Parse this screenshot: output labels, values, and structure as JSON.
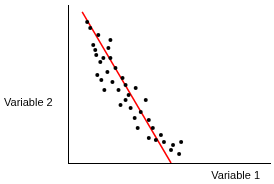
{
  "chart_data": {
    "type": "scatter",
    "x_label": "Variable 1",
    "y_label": "Variable 2",
    "xlim": [
      0,
      10
    ],
    "ylim": [
      0,
      10
    ],
    "grid": false,
    "tick_labels": false,
    "series": [
      {
        "type": "scatter",
        "color": "#000000",
        "marker": "circle",
        "x": [
          0.95,
          1.1,
          1.5,
          1.25,
          1.4,
          1.6,
          1.75,
          2.0,
          2.1,
          1.45,
          1.65,
          1.95,
          2.2,
          2.35,
          2.5,
          2.7,
          2.85,
          2.6,
          3.0,
          3.1,
          3.35,
          3.3,
          3.6,
          3.85,
          4.0,
          4.2,
          4.35,
          4.6,
          4.0,
          4.75,
          5.1,
          5.2,
          5.5,
          5.6,
          3.45,
          2.1,
          1.35,
          1.8,
          2.85
        ],
        "values": [
          8.92,
          8.54,
          8.1,
          7.47,
          6.84,
          6.39,
          6.65,
          7.28,
          6.65,
          5.57,
          5.25,
          5.76,
          5.13,
          6.01,
          4.62,
          5.38,
          3.99,
          3.67,
          4.3,
          3.48,
          4.75,
          2.85,
          3.23,
          3.99,
          2.72,
          2.22,
          1.46,
          1.77,
          1.58,
          1.33,
          0.82,
          1.14,
          0.57,
          1.33,
          2.22,
          7.78,
          7.15,
          4.62,
          4.94
        ]
      },
      {
        "type": "line",
        "color": "#ff0000",
        "line_style": "solid",
        "x": [
          0.7,
          5.1
        ],
        "values": [
          9.56,
          0
        ]
      }
    ]
  }
}
